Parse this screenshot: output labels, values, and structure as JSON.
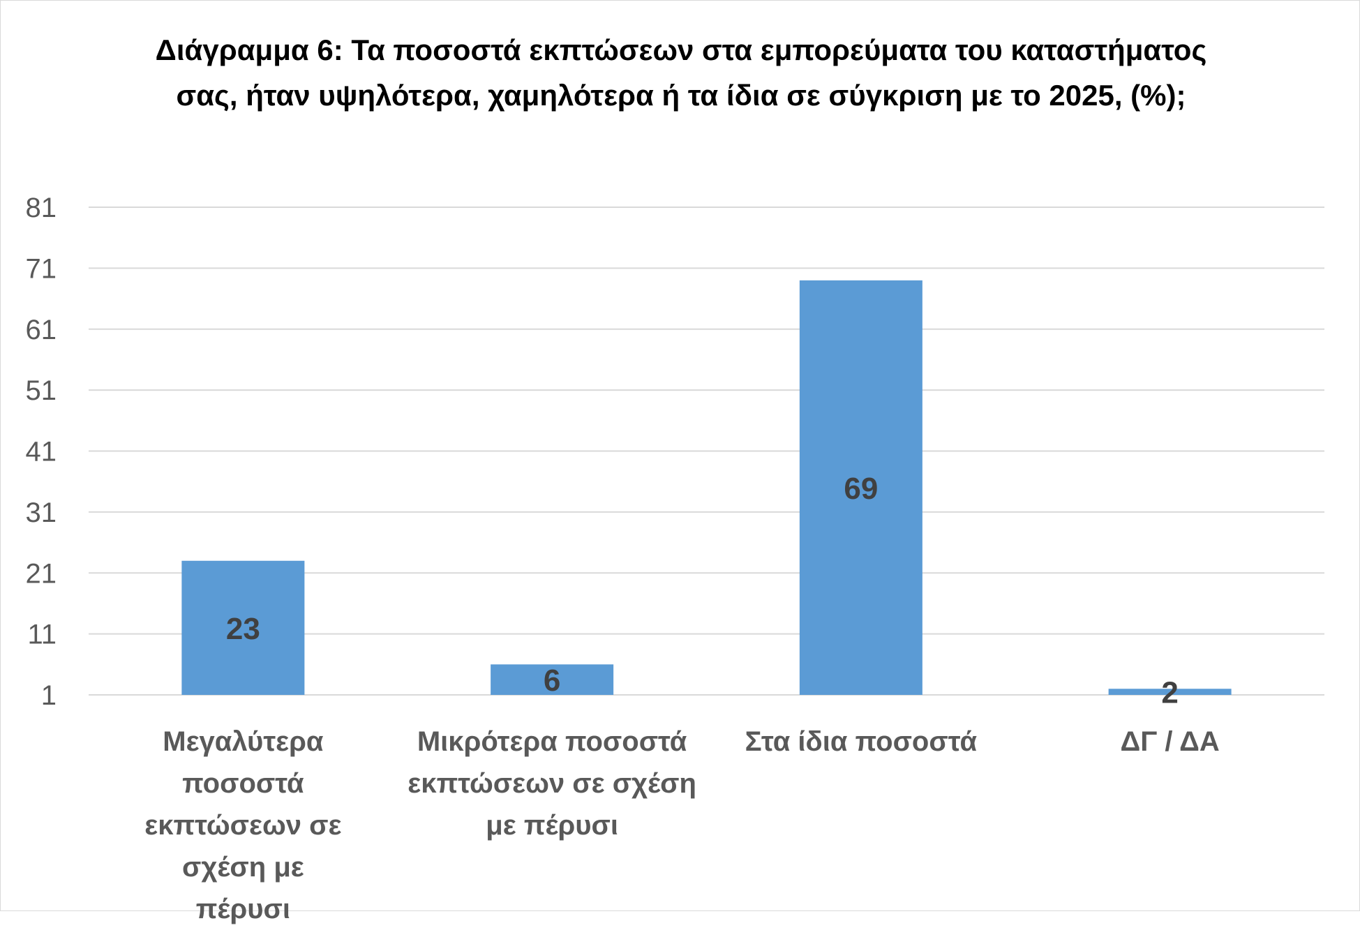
{
  "chart_data": {
    "type": "bar",
    "title": "Διάγραμμα 6: Τα ποσοστά εκπτώσεων στα εμπορεύματα του καταστήματος σας, ήταν υψηλότερα, χαμηλότερα ή τα ίδια σε σύγκριση με το 2025, (%);",
    "categories": [
      "Μεγαλύτερα ποσοστά εκπτώσεων σε σχέση με πέρυσι",
      "Μικρότερα ποσοστά εκπτώσεων σε σχέση με πέρυσι",
      "Στα ίδια ποσοστά",
      "ΔΓ / ΔΑ"
    ],
    "values": [
      23,
      6,
      69,
      2
    ],
    "data_labels": [
      "23",
      "6",
      "69",
      "2"
    ],
    "xlabel": "",
    "ylabel": "",
    "ylim": [
      1,
      81
    ],
    "yticks": [
      1,
      11,
      21,
      31,
      41,
      51,
      61,
      71,
      81
    ],
    "grid": true,
    "legend": "none",
    "colors": {
      "bar": "#5b9bd5",
      "grid": "#d9d9d9",
      "tick_text": "#595959",
      "data_label": "#404040",
      "title": "#000000"
    }
  }
}
